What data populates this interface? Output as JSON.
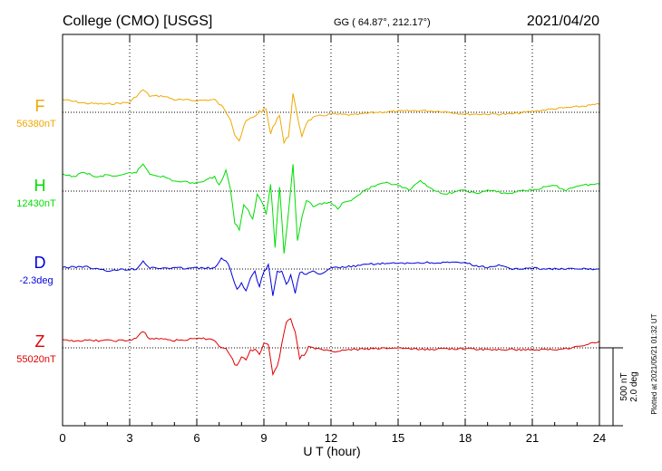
{
  "header": {
    "station": "College (CMO)  [USGS]",
    "coords": "GG ( 64.87°, 212.17°)",
    "date": "2021/04/20"
  },
  "side_note": "Plotted at 2021/05/21 01:32 UT",
  "scale_bar": {
    "line1": "500 nT",
    "line2": "2.0 deg"
  },
  "chart_data": {
    "type": "line",
    "xlabel": "U T (hour)",
    "xlim": [
      0,
      24
    ],
    "xticks": [
      "0",
      "3",
      "6",
      "9",
      "12",
      "15",
      "18",
      "21",
      "24"
    ],
    "grid": true,
    "series": [
      {
        "name": "F",
        "baseline_label": "56380nT",
        "color": "#f0a800",
        "points": [
          [
            0,
            110
          ],
          [
            1,
            114
          ],
          [
            2,
            115
          ],
          [
            3,
            113
          ],
          [
            3.3,
            106
          ],
          [
            3.6,
            99
          ],
          [
            3.9,
            106
          ],
          [
            4.5,
            106
          ],
          [
            5,
            110
          ],
          [
            6,
            111
          ],
          [
            6.8,
            110
          ],
          [
            7.2,
            120
          ],
          [
            7.5,
            130
          ],
          [
            7.7,
            148
          ],
          [
            7.9,
            155
          ],
          [
            8.2,
            134
          ],
          [
            8.5,
            130
          ],
          [
            8.8,
            123
          ],
          [
            9.1,
            121
          ],
          [
            9.3,
            148
          ],
          [
            9.5,
            135
          ],
          [
            9.7,
            126
          ],
          [
            9.9,
            158
          ],
          [
            10.1,
            150
          ],
          [
            10.3,
            104
          ],
          [
            10.5,
            130
          ],
          [
            10.7,
            150
          ],
          [
            10.9,
            135
          ],
          [
            11.2,
            130
          ],
          [
            11.5,
            128
          ],
          [
            12,
            126
          ],
          [
            13,
            127
          ],
          [
            14,
            124
          ],
          [
            15,
            123
          ],
          [
            16,
            122
          ],
          [
            17,
            123
          ],
          [
            18,
            126
          ],
          [
            19,
            126
          ],
          [
            20,
            126
          ],
          [
            21,
            123
          ],
          [
            22,
            120
          ],
          [
            23,
            118
          ],
          [
            24,
            115
          ]
        ]
      },
      {
        "name": "H",
        "baseline_label": "12430nT",
        "color": "#00dd00",
        "points": [
          [
            0,
            193
          ],
          [
            0.5,
            195
          ],
          [
            1,
            190
          ],
          [
            1.5,
            196
          ],
          [
            2,
            193
          ],
          [
            2.5,
            195
          ],
          [
            3,
            191
          ],
          [
            3.3,
            190
          ],
          [
            3.6,
            181
          ],
          [
            3.9,
            192
          ],
          [
            4.5,
            195
          ],
          [
            5,
            200
          ],
          [
            6,
            202
          ],
          [
            6.8,
            195
          ],
          [
            7,
            205
          ],
          [
            7.3,
            188
          ],
          [
            7.5,
            210
          ],
          [
            7.7,
            245
          ],
          [
            7.9,
            255
          ],
          [
            8.1,
            225
          ],
          [
            8.3,
            232
          ],
          [
            8.5,
            240
          ],
          [
            8.7,
            215
          ],
          [
            8.9,
            222
          ],
          [
            9.1,
            236
          ],
          [
            9.3,
            205
          ],
          [
            9.5,
            272
          ],
          [
            9.7,
            205
          ],
          [
            9.9,
            280
          ],
          [
            10.1,
            235
          ],
          [
            10.3,
            180
          ],
          [
            10.5,
            265
          ],
          [
            10.7,
            240
          ],
          [
            10.9,
            220
          ],
          [
            11.2,
            228
          ],
          [
            11.5,
            225
          ],
          [
            12,
            224
          ],
          [
            12.3,
            230
          ],
          [
            12.6,
            222
          ],
          [
            13,
            220
          ],
          [
            13.5,
            210
          ],
          [
            14,
            205
          ],
          [
            14.5,
            202
          ],
          [
            15,
            205
          ],
          [
            15.5,
            210
          ],
          [
            16,
            200
          ],
          [
            16.5,
            208
          ],
          [
            17,
            215
          ],
          [
            17.5,
            212
          ],
          [
            18,
            210
          ],
          [
            18.5,
            214
          ],
          [
            19,
            210
          ],
          [
            19.5,
            212
          ],
          [
            20,
            214
          ],
          [
            20.5,
            210
          ],
          [
            21,
            210
          ],
          [
            21.5,
            207
          ],
          [
            22,
            205
          ],
          [
            22.5,
            210
          ],
          [
            23,
            205
          ],
          [
            23.5,
            204
          ],
          [
            24,
            203
          ]
        ]
      },
      {
        "name": "D",
        "baseline_label": "-2.3deg",
        "color": "#0000dd",
        "points": [
          [
            0,
            295
          ],
          [
            0.5,
            295
          ],
          [
            1,
            294
          ],
          [
            1.5,
            297
          ],
          [
            2,
            299
          ],
          [
            2.5,
            298
          ],
          [
            3,
            297
          ],
          [
            3.3,
            297
          ],
          [
            3.6,
            288
          ],
          [
            3.9,
            296
          ],
          [
            4.5,
            296
          ],
          [
            5,
            296
          ],
          [
            6,
            296
          ],
          [
            6.8,
            296
          ],
          [
            7.1,
            286
          ],
          [
            7.4,
            292
          ],
          [
            7.6,
            305
          ],
          [
            7.8,
            318
          ],
          [
            8,
            312
          ],
          [
            8.2,
            323
          ],
          [
            8.4,
            306
          ],
          [
            8.6,
            300
          ],
          [
            8.8,
            316
          ],
          [
            9,
            300
          ],
          [
            9.2,
            290
          ],
          [
            9.4,
            325
          ],
          [
            9.6,
            300
          ],
          [
            9.8,
            298
          ],
          [
            10,
            315
          ],
          [
            10.2,
            303
          ],
          [
            10.4,
            325
          ],
          [
            10.6,
            300
          ],
          [
            10.8,
            302
          ],
          [
            11.2,
            300
          ],
          [
            11.6,
            303
          ],
          [
            12,
            296
          ],
          [
            13,
            294
          ],
          [
            14,
            291
          ],
          [
            15,
            291
          ],
          [
            16,
            290
          ],
          [
            17,
            290
          ],
          [
            18,
            290
          ],
          [
            18.5,
            294
          ],
          [
            19,
            295
          ],
          [
            19.5,
            293
          ],
          [
            20,
            297
          ],
          [
            21,
            296
          ],
          [
            22,
            297
          ],
          [
            23,
            297
          ],
          [
            24,
            297
          ]
        ]
      },
      {
        "name": "Z",
        "baseline_label": "55020nT",
        "color": "#e00000",
        "points": [
          [
            0,
            376
          ],
          [
            1,
            376
          ],
          [
            2,
            376
          ],
          [
            3,
            376
          ],
          [
            3.3,
            373
          ],
          [
            3.6,
            366
          ],
          [
            3.9,
            374
          ],
          [
            4.5,
            374
          ],
          [
            5,
            376
          ],
          [
            6,
            374
          ],
          [
            6.7,
            374
          ],
          [
            7,
            382
          ],
          [
            7.3,
            384
          ],
          [
            7.6,
            398
          ],
          [
            7.8,
            404
          ],
          [
            8,
            394
          ],
          [
            8.2,
            398
          ],
          [
            8.4,
            386
          ],
          [
            8.6,
            385
          ],
          [
            8.8,
            390
          ],
          [
            9,
            378
          ],
          [
            9.2,
            382
          ],
          [
            9.4,
            412
          ],
          [
            9.6,
            405
          ],
          [
            9.8,
            380
          ],
          [
            10,
            355
          ],
          [
            10.2,
            352
          ],
          [
            10.4,
            365
          ],
          [
            10.6,
            395
          ],
          [
            10.8,
            392
          ],
          [
            11,
            382
          ],
          [
            11.5,
            386
          ],
          [
            12,
            388
          ],
          [
            13,
            386
          ],
          [
            14,
            385
          ],
          [
            15,
            384
          ],
          [
            16,
            386
          ],
          [
            17,
            385
          ],
          [
            18,
            385
          ],
          [
            19,
            386
          ],
          [
            20,
            386
          ],
          [
            21,
            386
          ],
          [
            22,
            386
          ],
          [
            23,
            383
          ],
          [
            24,
            377
          ]
        ]
      }
    ]
  }
}
